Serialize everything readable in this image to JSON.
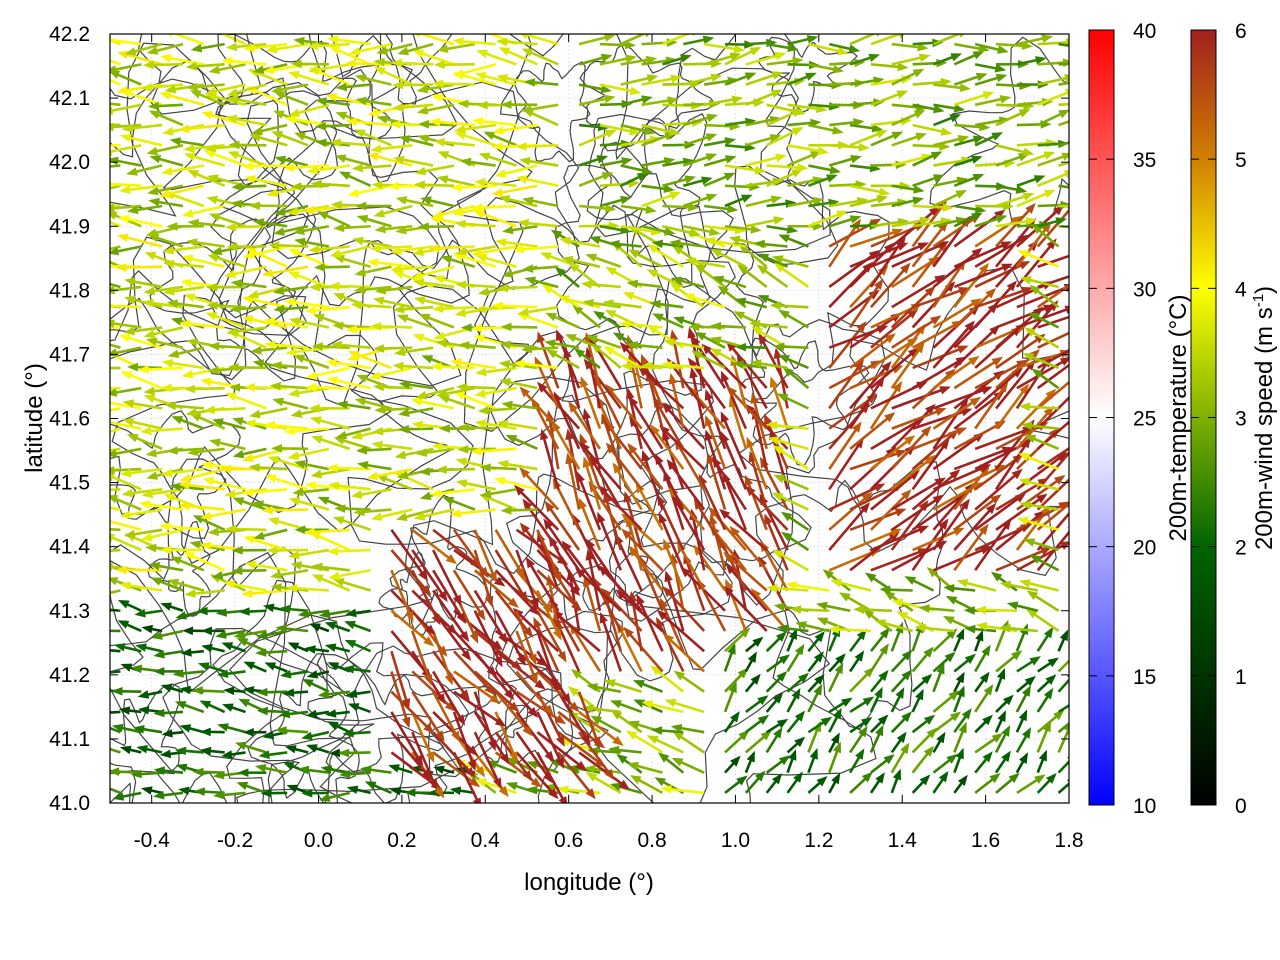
{
  "chart_data": {
    "type": "quiver",
    "xlabel": "longitude (°)",
    "ylabel": "latitude (°)",
    "xlim": [
      -0.5,
      1.8
    ],
    "ylim": [
      41.0,
      42.2
    ],
    "x_ticks": [
      "-0.4",
      "-0.2",
      "0.0",
      "0.2",
      "0.4",
      "0.6",
      "0.8",
      "1.0",
      "1.2",
      "1.4",
      "1.6",
      "1.8"
    ],
    "y_ticks": [
      "41.0",
      "41.1",
      "41.2",
      "41.3",
      "41.4",
      "41.5",
      "41.6",
      "41.7",
      "41.8",
      "41.9",
      "42.0",
      "42.1",
      "42.2"
    ],
    "grid": true,
    "overlay": "terrain contours (dark grey lines)",
    "temperature_colorbar": {
      "label": "200m-temperature (°C)",
      "range": [
        10,
        40
      ],
      "ticks": [
        "10",
        "15",
        "20",
        "25",
        "30",
        "35",
        "40"
      ],
      "colors": [
        "#0000ff",
        "#ffffff",
        "#ff0000"
      ]
    },
    "wind_colorbar": {
      "label_main": "200m-wind speed (m s",
      "label_sup": "-1",
      "label_end": ")",
      "range": [
        0,
        6
      ],
      "ticks": [
        "0",
        "1",
        "2",
        "3",
        "4",
        "5",
        "6"
      ],
      "colors": [
        "#000000",
        "#006400",
        "#7fb000",
        "#ffff00",
        "#d08000",
        "#a02020"
      ]
    },
    "wind_regions": [
      {
        "description": "strong westward easterly flow over western domain",
        "lon": [
          -0.5,
          0.6
        ],
        "lat": [
          41.3,
          42.2
        ],
        "speed": 3.5,
        "u": -1.0,
        "v": 0.08
      },
      {
        "description": "weak flow near southern edge",
        "lon": [
          -0.5,
          0.4
        ],
        "lat": [
          41.0,
          41.3
        ],
        "speed": 2.0,
        "u": -1.0,
        "v": 0.1
      },
      {
        "description": "strong southeastward jet",
        "lon": [
          0.15,
          0.65
        ],
        "lat": [
          41.05,
          41.45
        ],
        "speed": 5.8,
        "u": 0.6,
        "v": -0.8
      },
      {
        "description": "strong divergent flow",
        "lon": [
          0.55,
          1.15
        ],
        "lat": [
          41.2,
          41.65
        ],
        "speed": 5.8,
        "u": -0.5,
        "v": 0.9
      },
      {
        "description": "strong northeastward flow",
        "lon": [
          1.2,
          1.75
        ],
        "lat": [
          41.35,
          41.95
        ],
        "speed": 5.9,
        "u": 0.8,
        "v": 0.6
      },
      {
        "description": "moderate eastward flow",
        "lon": [
          0.6,
          1.8
        ],
        "lat": [
          41.9,
          42.2
        ],
        "speed": 3.0,
        "u": 0.9,
        "v": 0.1
      },
      {
        "description": "weak calm zone",
        "lon": [
          0.95,
          1.8
        ],
        "lat": [
          41.0,
          41.25
        ],
        "speed": 2.2,
        "u": 0.4,
        "v": 0.5
      }
    ]
  }
}
